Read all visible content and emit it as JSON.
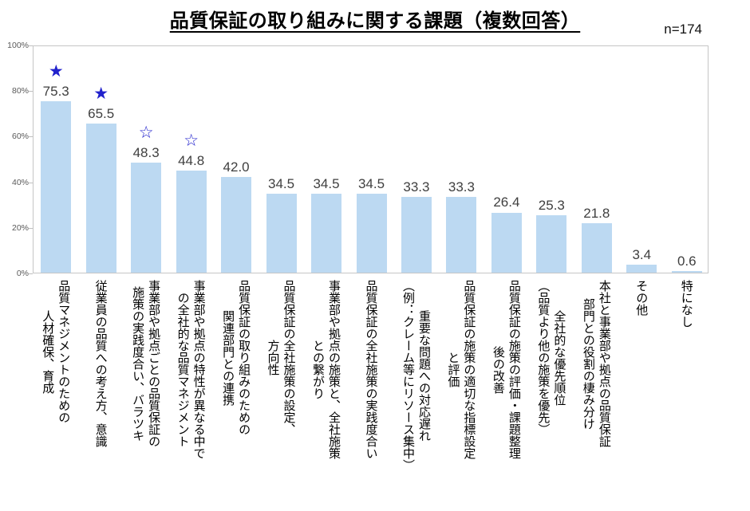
{
  "title": "品質保証の取り組みに関する課題（複数回答）",
  "n_label": "n=174",
  "chart_data": {
    "type": "bar",
    "title": "品質保証の取り組みに関する課題（複数回答）",
    "sample_size": "n=174",
    "categories": [
      "品質マネジメントのための\n人材確保、育成",
      "従業員の品質への考え方、意識",
      "事業部や拠点ごとの品質保証の\n施策の実践度合い、バラツキ",
      "事業部や拠点の特性が異なる中で\nの全社的な品質マネジメント",
      "品質保証の取り組みのための\n関連部門との連携",
      "品質保証の全社施策の設定、\n方向性",
      "事業部や拠点の施策と、全社施策\nとの繋がり",
      "品質保証の全社施策の実践度合い",
      "重要な問題への対応遅れ\n（例：クレーム等にリソース集中）",
      "品質保証の施策の適切な指標設定\nと評価",
      "品質保証の施策の評価・課題整理\n後の改善",
      "全社的な優先順位\n（品質より他の施策を優先）",
      "本社と事業部や拠点の品質保証\n部門との役割の棲み分け",
      "その他",
      "特になし"
    ],
    "values": [
      75.3,
      65.5,
      48.3,
      44.8,
      42.0,
      34.5,
      34.5,
      34.5,
      33.3,
      33.3,
      26.4,
      25.3,
      21.8,
      3.4,
      0.6
    ],
    "markers": [
      "filled-star",
      "filled-star",
      "outline-star",
      "outline-star",
      "",
      "",
      "",
      "",
      "",
      "",
      "",
      "",
      "",
      "",
      ""
    ],
    "marker_glyphs": {
      "filled-star": "★",
      "outline-star": "☆"
    },
    "y_ticks": [
      0,
      20,
      40,
      60,
      80,
      100
    ],
    "y_tick_labels": [
      "0%",
      "20%",
      "40%",
      "60%",
      "80%",
      "100%"
    ],
    "ylim": [
      0,
      100
    ],
    "xlabel": "",
    "ylabel": "",
    "grid": "off",
    "legend": "none",
    "bar_color": "#bcd9f2",
    "marker_color": "#2121cc",
    "value_label_color": "#3f3f3f",
    "axis_label_color": "#595959"
  }
}
